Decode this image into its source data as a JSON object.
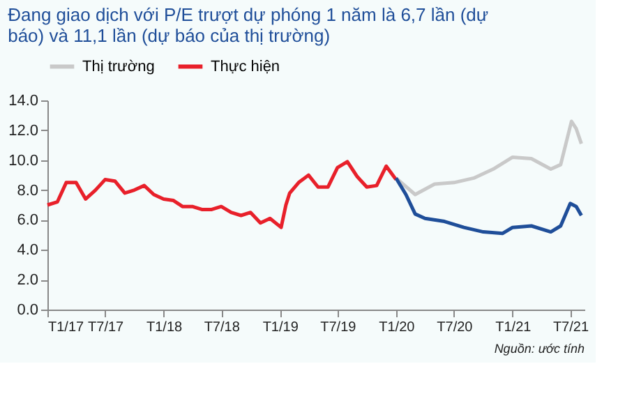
{
  "chart_data": {
    "type": "line",
    "title": "Đang giao dịch với P/E trượt dự phóng 1 năm là 6,7 lần (dự báo) và 11,1 lần (dự báo của thị trường)",
    "annotations": [
      "Nguồn: ước tính"
    ],
    "legend": "top",
    "grid": false,
    "marker": "none",
    "line_style": "solid",
    "ylim": [
      0,
      14
    ],
    "yticks": [
      {
        "value": 0,
        "label": "0.0"
      },
      {
        "value": 2,
        "label": "2.0"
      },
      {
        "value": 4,
        "label": "4.0"
      },
      {
        "value": 6,
        "label": "6.0"
      },
      {
        "value": 8,
        "label": "8.0"
      },
      {
        "value": 10,
        "label": "10.0"
      },
      {
        "value": 12,
        "label": "12.0"
      },
      {
        "value": 14,
        "label": "14.0"
      }
    ],
    "xlim": [
      "2017-01-01",
      "2021-08-15"
    ],
    "xticks": [
      {
        "value": "2017-01-01",
        "label": "T1/17"
      },
      {
        "value": "2017-07-01",
        "label": "T7/17"
      },
      {
        "value": "2018-01-01",
        "label": "T1/18"
      },
      {
        "value": "2018-07-01",
        "label": "T7/18"
      },
      {
        "value": "2019-01-01",
        "label": "T1/19"
      },
      {
        "value": "2019-07-01",
        "label": "T7/19"
      },
      {
        "value": "2020-01-01",
        "label": "T1/20"
      },
      {
        "value": "2020-07-01",
        "label": "T7/20"
      },
      {
        "value": "2021-01-01",
        "label": "T1/21"
      },
      {
        "value": "2021-07-01",
        "label": "T7/21"
      }
    ],
    "series": [
      {
        "name": "Thị trường",
        "color": "#c9c9c9",
        "x": [
          "2020-01-01",
          "2020-03-01",
          "2020-05-01",
          "2020-07-01",
          "2020-09-01",
          "2020-11-01",
          "2021-01-01",
          "2021-03-01",
          "2021-05-01",
          "2021-06-01",
          "2021-07-05",
          "2021-07-20",
          "2021-08-05"
        ],
        "values": [
          8.8,
          7.7,
          8.4,
          8.5,
          8.8,
          9.4,
          10.2,
          10.1,
          9.4,
          9.7,
          12.6,
          12.1,
          11.1
        ]
      },
      {
        "name": "Thực hiện",
        "color": "#e8202a",
        "x": [
          "2017-01-01",
          "2017-02-01",
          "2017-03-01",
          "2017-04-01",
          "2017-05-01",
          "2017-06-01",
          "2017-07-01",
          "2017-08-01",
          "2017-09-01",
          "2017-10-01",
          "2017-11-01",
          "2017-12-01",
          "2018-01-01",
          "2018-02-01",
          "2018-03-01",
          "2018-04-01",
          "2018-05-01",
          "2018-06-01",
          "2018-07-01",
          "2018-08-01",
          "2018-09-01",
          "2018-10-01",
          "2018-11-01",
          "2018-12-01",
          "2019-01-05",
          "2019-01-20",
          "2019-02-01",
          "2019-03-01",
          "2019-04-01",
          "2019-05-01",
          "2019-06-01",
          "2019-07-01",
          "2019-08-01",
          "2019-09-01",
          "2019-10-01",
          "2019-11-01",
          "2019-12-01",
          "2020-01-01"
        ],
        "values": [
          7.0,
          7.2,
          8.5,
          8.5,
          7.4,
          8.0,
          8.7,
          8.6,
          7.8,
          8.0,
          8.3,
          7.7,
          7.4,
          7.3,
          6.9,
          6.9,
          6.7,
          6.7,
          6.9,
          6.5,
          6.3,
          6.5,
          5.8,
          6.1,
          5.5,
          7.0,
          7.8,
          8.5,
          9.0,
          8.2,
          8.2,
          9.5,
          9.9,
          8.9,
          8.2,
          8.3,
          9.6,
          8.7
        ]
      },
      {
        "color": "#1f4e99",
        "x": [
          "2020-01-01",
          "2020-02-01",
          "2020-03-01",
          "2020-04-01",
          "2020-06-01",
          "2020-08-01",
          "2020-10-01",
          "2020-12-01",
          "2021-01-01",
          "2021-03-01",
          "2021-05-01",
          "2021-06-01",
          "2021-07-01",
          "2021-07-20",
          "2021-08-05"
        ],
        "values": [
          8.8,
          7.7,
          6.4,
          6.1,
          5.9,
          5.5,
          5.2,
          5.1,
          5.5,
          5.6,
          5.2,
          5.6,
          7.1,
          6.9,
          6.3
        ]
      }
    ]
  }
}
